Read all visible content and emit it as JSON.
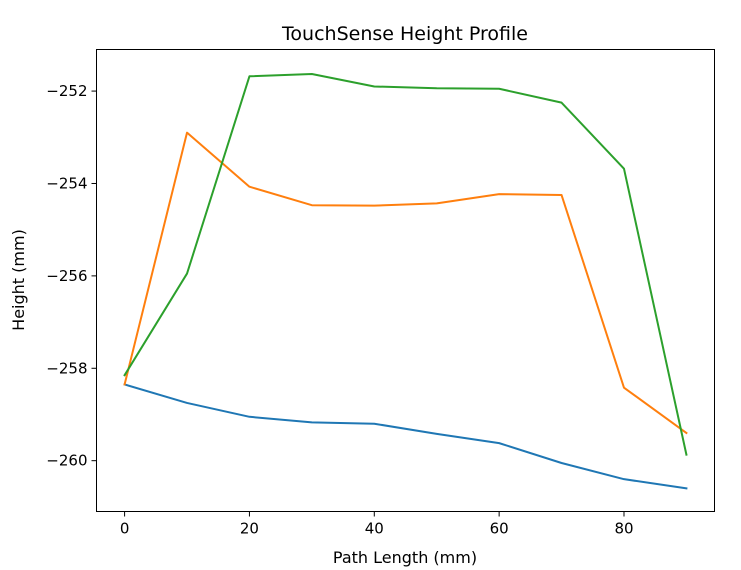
{
  "chart_data": {
    "type": "line",
    "title": "TouchSense Height Profile",
    "xlabel": "Path Length (mm)",
    "ylabel": "Height (mm)",
    "xlim": [
      -4.5,
      94.5
    ],
    "ylim": [
      -261.1,
      -251.1
    ],
    "xticks": [
      0,
      20,
      40,
      60,
      80
    ],
    "xtick_labels": [
      "0",
      "20",
      "40",
      "60",
      "80"
    ],
    "yticks": [
      -252,
      -254,
      -256,
      -258,
      -260
    ],
    "ytick_labels": [
      "−252",
      "−254",
      "−256",
      "−258",
      "−260"
    ],
    "grid": false,
    "x": [
      0,
      10,
      20,
      30,
      40,
      50,
      60,
      70,
      80,
      90
    ],
    "series": [
      {
        "color": "#1f77b4",
        "values": [
          -258.35,
          -258.75,
          -259.05,
          -259.17,
          -259.2,
          -259.42,
          -259.62,
          -260.05,
          -260.4,
          -260.6
        ]
      },
      {
        "color": "#ff7f0e",
        "values": [
          -258.35,
          -252.9,
          -254.07,
          -254.47,
          -254.48,
          -254.43,
          -254.23,
          -254.25,
          -258.42,
          -259.4
        ]
      },
      {
        "color": "#2ca02c",
        "values": [
          -258.15,
          -255.95,
          -251.68,
          -251.63,
          -251.9,
          -251.94,
          -251.95,
          -252.25,
          -253.68,
          -259.87
        ]
      }
    ]
  }
}
